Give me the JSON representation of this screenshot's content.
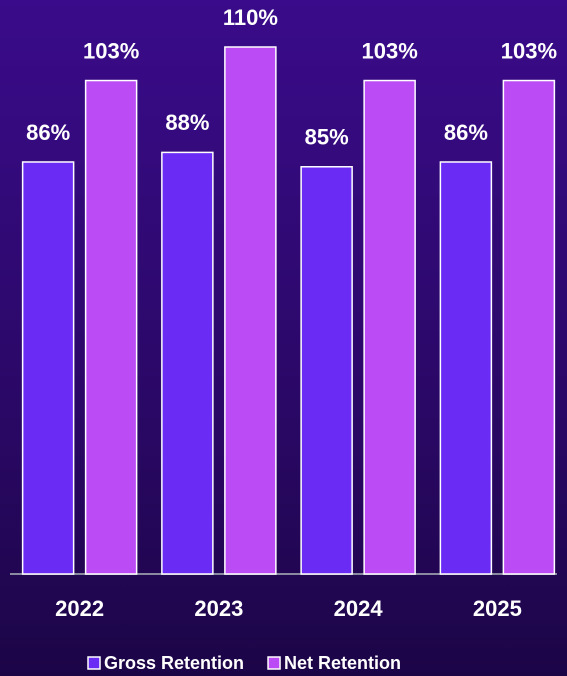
{
  "chart_data": {
    "type": "bar",
    "categories": [
      "2022",
      "2023",
      "2024",
      "2025"
    ],
    "series": [
      {
        "name": "Gross Retention",
        "color": "#6a2cf5",
        "values": [
          86,
          88,
          85,
          86
        ],
        "value_labels": [
          "86%",
          "88%",
          "85%",
          "86%"
        ]
      },
      {
        "name": "Net Retention",
        "color": "#bb4cf5",
        "values": [
          103,
          110,
          103,
          103
        ],
        "value_labels": [
          "103%",
          "110%",
          "103%",
          "103%"
        ]
      }
    ],
    "ylim": [
      0,
      110
    ],
    "legend": "bottom"
  }
}
